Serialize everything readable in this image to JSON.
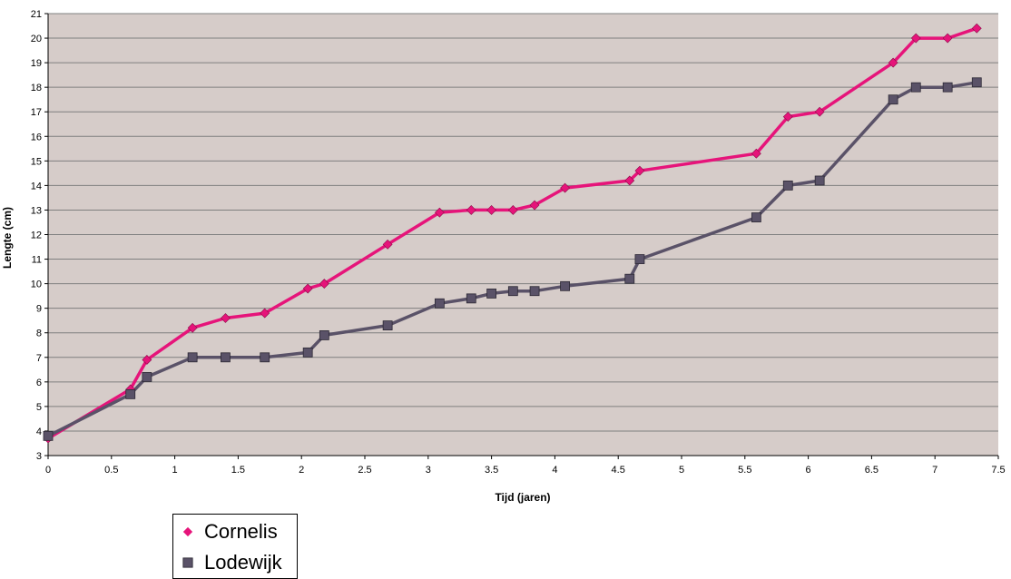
{
  "chart_data": {
    "type": "line",
    "xlabel": "Tijd (jaren)",
    "ylabel": "Lengte (cm)",
    "xlim": [
      0,
      7.5
    ],
    "ylim": [
      3,
      21
    ],
    "xticks": [
      "0",
      "0.5",
      "1",
      "1.5",
      "2",
      "2.5",
      "3",
      "3.5",
      "4",
      "4.5",
      "5",
      "5.5",
      "6",
      "6.5",
      "7",
      "7.5"
    ],
    "yticks": [
      "3",
      "4",
      "5",
      "6",
      "7",
      "8",
      "9",
      "10",
      "11",
      "12",
      "13",
      "14",
      "15",
      "16",
      "17",
      "18",
      "19",
      "20",
      "21"
    ],
    "grid": "horizontal",
    "plot_background": "#d6ccc9",
    "legend_position": "bottom-left",
    "series": [
      {
        "name": "Cornelis",
        "color": "#e6147a",
        "marker": "diamond",
        "x": [
          0,
          0.65,
          0.78,
          1.14,
          1.4,
          1.71,
          2.05,
          2.18,
          2.68,
          3.09,
          3.34,
          3.5,
          3.67,
          3.84,
          4.08,
          4.59,
          4.67,
          5.59,
          5.84,
          6.09,
          6.67,
          6.85,
          7.1,
          7.33
        ],
        "y": [
          3.7,
          5.7,
          6.9,
          8.2,
          8.6,
          8.8,
          9.8,
          10.0,
          11.6,
          12.9,
          13.0,
          13.0,
          13.0,
          13.2,
          13.9,
          14.2,
          14.6,
          15.3,
          16.8,
          17.0,
          19.0,
          20.0,
          20.0,
          20.4
        ]
      },
      {
        "name": "Lodewijk",
        "color": "#5a5268",
        "marker": "square",
        "x": [
          0,
          0.65,
          0.78,
          1.14,
          1.4,
          1.71,
          2.05,
          2.18,
          2.68,
          3.09,
          3.34,
          3.5,
          3.67,
          3.84,
          4.08,
          4.59,
          4.67,
          5.59,
          5.84,
          6.09,
          6.67,
          6.85,
          7.1,
          7.33
        ],
        "y": [
          3.8,
          5.5,
          6.2,
          7.0,
          7.0,
          7.0,
          7.2,
          7.9,
          8.3,
          9.2,
          9.4,
          9.6,
          9.7,
          9.7,
          9.9,
          10.2,
          11.0,
          12.7,
          14.0,
          14.2,
          17.5,
          18.0,
          18.0,
          18.2
        ]
      }
    ]
  }
}
